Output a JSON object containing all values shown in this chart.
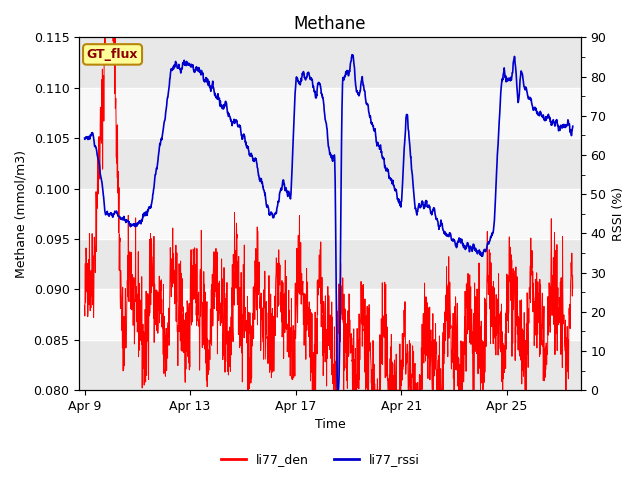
{
  "title": "Methane",
  "ylabel_left": "Methane (mmol/m3)",
  "ylabel_right": "RSSI (%)",
  "xlabel": "Time",
  "ylim_left": [
    0.08,
    0.115
  ],
  "ylim_right": [
    0,
    90
  ],
  "yticks_left": [
    0.08,
    0.085,
    0.09,
    0.095,
    0.1,
    0.105,
    0.11,
    0.115
  ],
  "yticks_right": [
    0,
    10,
    20,
    30,
    40,
    50,
    60,
    70,
    80,
    90
  ],
  "xtick_labels": [
    "Apr 9",
    "Apr 13",
    "Apr 17",
    "Apr 21",
    "Apr 25"
  ],
  "annotation_text": "GT_flux",
  "annotation_color_text": "#8B0000",
  "annotation_bg": "#FFFF99",
  "annotation_border": "#B8860B",
  "color_red": "#FF0000",
  "color_blue": "#0000CD",
  "legend_red": "li77_den",
  "legend_blue": "li77_rssi",
  "bg_color": "#FFFFFF",
  "plot_bg_color": "#E8E8E8",
  "band_light": "#E8E8E8",
  "band_white": "#F8F8F8",
  "grid_color": "#FFFFFF",
  "title_fontsize": 12,
  "label_fontsize": 9,
  "tick_fontsize": 9,
  "legend_fontsize": 9
}
